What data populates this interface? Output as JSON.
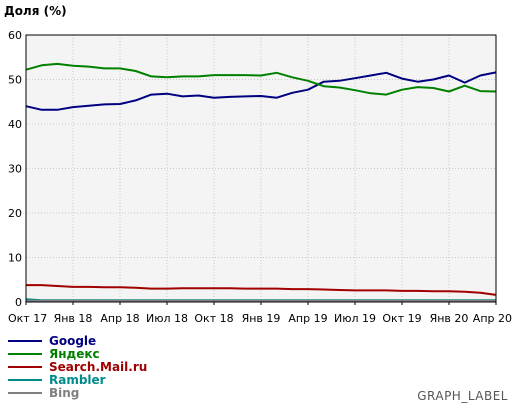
{
  "chart_data": {
    "type": "line",
    "title": "Доля (%)",
    "xlabel": "",
    "ylabel": "",
    "ylim": [
      0,
      60
    ],
    "yticks": [
      0,
      10,
      20,
      30,
      40,
      50,
      60
    ],
    "grid": true,
    "legend_position": "bottom-left",
    "footer": "GRAPH_LABEL",
    "plot_background": "#f4f4f4",
    "x": [
      "2017-10",
      "2017-11",
      "2017-12",
      "2018-01",
      "2018-02",
      "2018-03",
      "2018-04",
      "2018-05",
      "2018-06",
      "2018-07",
      "2018-08",
      "2018-09",
      "2018-10",
      "2018-11",
      "2018-12",
      "2019-01",
      "2019-02",
      "2019-03",
      "2019-04",
      "2019-05",
      "2019-06",
      "2019-07",
      "2019-08",
      "2019-09",
      "2019-10",
      "2019-11",
      "2019-12",
      "2020-01",
      "2020-02",
      "2020-03",
      "2020-04"
    ],
    "x_tick_labels": [
      "Окт 17",
      "Янв 18",
      "Апр 18",
      "Июл 18",
      "Окт 18",
      "Янв 19",
      "Апр 19",
      "Июл 19",
      "Окт 19",
      "Янв 20",
      "Апр 20"
    ],
    "x_tick_indices": [
      0,
      3,
      6,
      9,
      12,
      15,
      18,
      21,
      24,
      27,
      30
    ],
    "series": [
      {
        "name": "Google",
        "color": "#000080",
        "values": [
          44.0,
          43.2,
          43.2,
          43.8,
          44.1,
          44.4,
          44.5,
          45.3,
          46.6,
          46.8,
          46.2,
          46.4,
          45.9,
          46.1,
          46.2,
          46.3,
          45.9,
          47.0,
          47.7,
          49.5,
          49.7,
          50.3,
          50.9,
          51.5,
          50.2,
          49.5,
          50.0,
          50.9,
          49.3,
          50.9,
          51.6
        ]
      },
      {
        "name": "Яндекс",
        "color": "#008000",
        "values": [
          52.2,
          53.2,
          53.5,
          53.1,
          52.9,
          52.5,
          52.5,
          51.9,
          50.7,
          50.5,
          50.7,
          50.7,
          51.0,
          51.0,
          51.0,
          50.9,
          51.5,
          50.5,
          49.7,
          48.5,
          48.2,
          47.6,
          46.9,
          46.6,
          47.7,
          48.3,
          48.1,
          47.3,
          48.6,
          47.4,
          47.3
        ]
      },
      {
        "name": "Search.Mail.ru",
        "color": "#a00000",
        "values": [
          3.8,
          3.8,
          3.6,
          3.4,
          3.4,
          3.3,
          3.3,
          3.2,
          3.0,
          3.0,
          3.1,
          3.1,
          3.1,
          3.1,
          3.0,
          3.0,
          3.0,
          2.9,
          2.9,
          2.8,
          2.7,
          2.6,
          2.6,
          2.6,
          2.5,
          2.5,
          2.4,
          2.4,
          2.3,
          2.1,
          1.6
        ]
      },
      {
        "name": "Rambler",
        "color": "#008b8b",
        "values": [
          0.6,
          0.4,
          0.4,
          0.4,
          0.4,
          0.4,
          0.4,
          0.4,
          0.4,
          0.4,
          0.4,
          0.4,
          0.4,
          0.4,
          0.4,
          0.4,
          0.4,
          0.4,
          0.4,
          0.4,
          0.4,
          0.4,
          0.4,
          0.4,
          0.4,
          0.4,
          0.4,
          0.4,
          0.4,
          0.4,
          0.4
        ]
      },
      {
        "name": "Bing",
        "color": "#808080",
        "values": [
          0.3,
          0.3,
          0.3,
          0.3,
          0.3,
          0.3,
          0.3,
          0.3,
          0.3,
          0.3,
          0.3,
          0.3,
          0.3,
          0.3,
          0.3,
          0.3,
          0.3,
          0.3,
          0.3,
          0.3,
          0.3,
          0.3,
          0.3,
          0.3,
          0.3,
          0.3,
          0.3,
          0.3,
          0.3,
          0.3,
          0.3
        ]
      }
    ]
  }
}
